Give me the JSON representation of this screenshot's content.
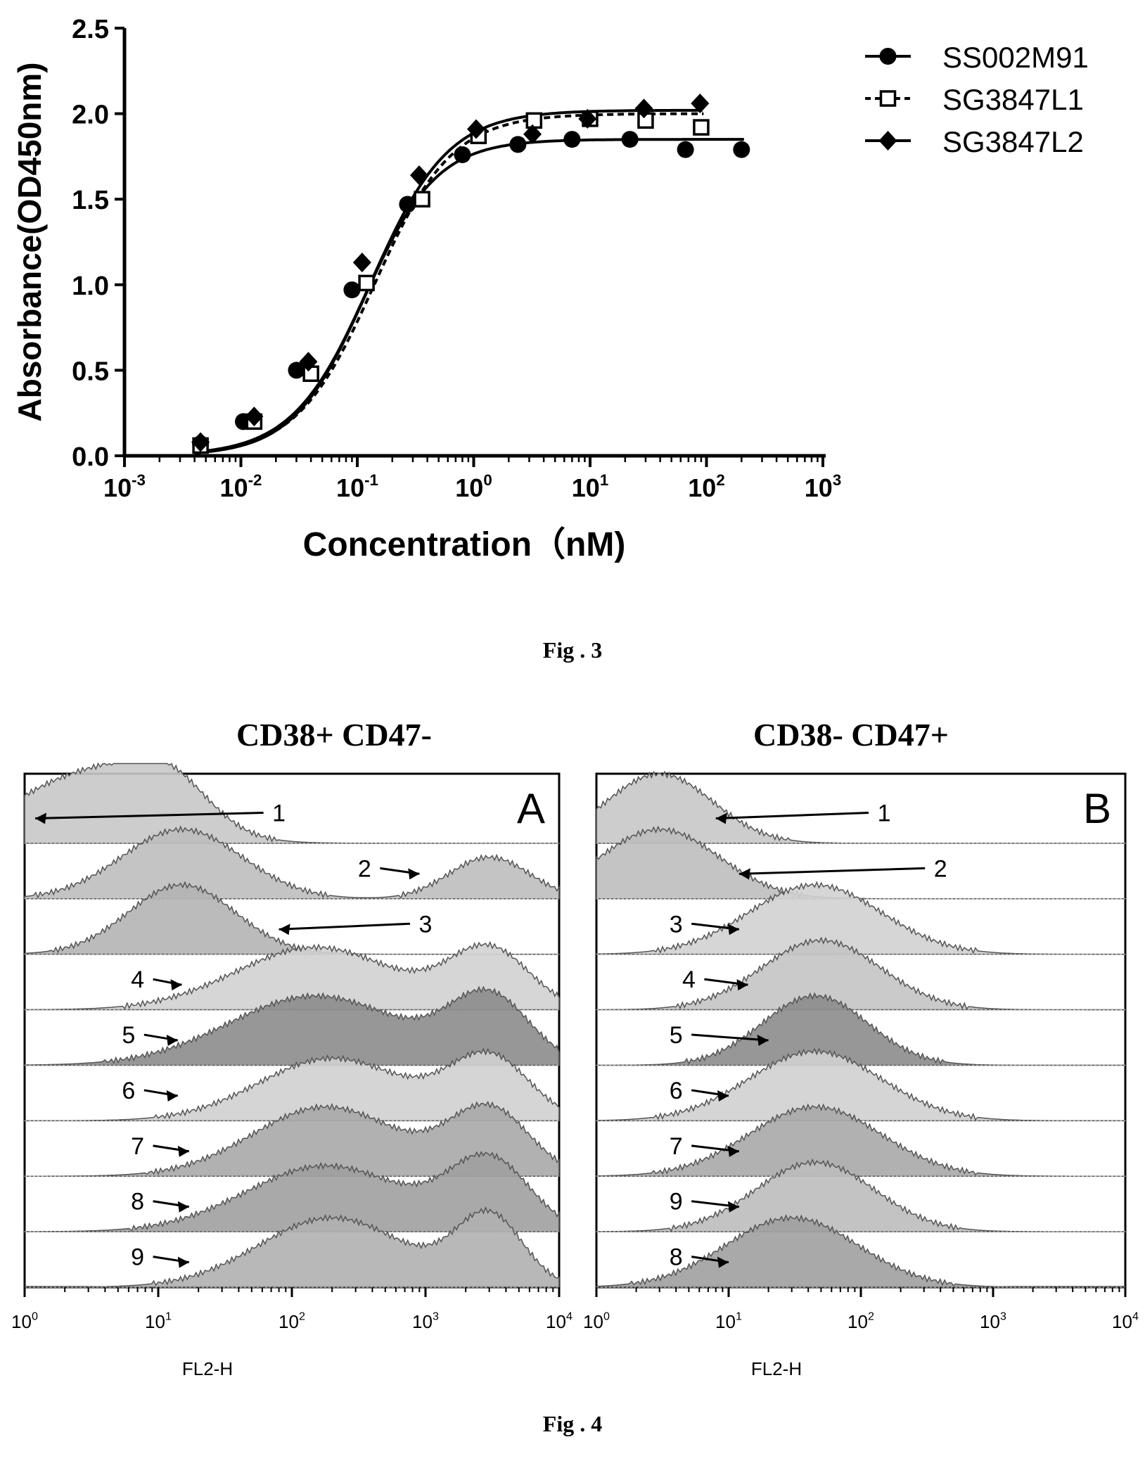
{
  "figures": {
    "fig3_caption": "Fig . 3",
    "fig4_caption": "Fig . 4"
  },
  "chart_data": [
    {
      "type": "line",
      "xscale": "log",
      "ylabel": "Absorbance(OD450nm)",
      "xlabel": "Concentration（nM)",
      "xlim": [
        0.001,
        1000
      ],
      "ylim": [
        0,
        2.5
      ],
      "yticks": [
        "0.0",
        "0.5",
        "1.0",
        "1.5",
        "2.0",
        "2.5"
      ],
      "xticks": [
        {
          "base": "10",
          "exp": "-3"
        },
        {
          "base": "10",
          "exp": "-2"
        },
        {
          "base": "10",
          "exp": "-1"
        },
        {
          "base": "10",
          "exp": "0"
        },
        {
          "base": "10",
          "exp": "1"
        },
        {
          "base": "10",
          "exp": "2"
        },
        {
          "base": "10",
          "exp": "3"
        }
      ],
      "legend_position": "top-right",
      "series": [
        {
          "name": "SS002M91",
          "marker": "circle",
          "line": "solid",
          "fit": {
            "bottom": 0.0,
            "top": 1.85,
            "ec50": 0.115,
            "hill": 1.4
          },
          "points": [
            {
              "x": 0.0045,
              "y": 0.07
            },
            {
              "x": 0.0105,
              "y": 0.2
            },
            {
              "x": 0.03,
              "y": 0.5
            },
            {
              "x": 0.09,
              "y": 0.97
            },
            {
              "x": 0.27,
              "y": 1.47
            },
            {
              "x": 0.8,
              "y": 1.76
            },
            {
              "x": 2.4,
              "y": 1.82
            },
            {
              "x": 7.0,
              "y": 1.85
            },
            {
              "x": 22.0,
              "y": 1.85
            },
            {
              "x": 66.0,
              "y": 1.79
            },
            {
              "x": 200.0,
              "y": 1.79
            }
          ]
        },
        {
          "name": "SG3847L1",
          "marker": "open-square",
          "line": "dashed",
          "fit": {
            "bottom": 0.0,
            "top": 2.0,
            "ec50": 0.14,
            "hill": 1.3
          },
          "points": [
            {
              "x": 0.0045,
              "y": 0.06
            },
            {
              "x": 0.013,
              "y": 0.2
            },
            {
              "x": 0.04,
              "y": 0.48
            },
            {
              "x": 0.12,
              "y": 1.01
            },
            {
              "x": 0.36,
              "y": 1.5
            },
            {
              "x": 1.1,
              "y": 1.87
            },
            {
              "x": 3.3,
              "y": 1.96
            },
            {
              "x": 10.0,
              "y": 1.97
            },
            {
              "x": 30.0,
              "y": 1.96
            },
            {
              "x": 90.0,
              "y": 1.92
            }
          ]
        },
        {
          "name": "SG3847L2",
          "marker": "diamond",
          "line": "solid",
          "fit": {
            "bottom": 0.0,
            "top": 2.02,
            "ec50": 0.13,
            "hill": 1.3
          },
          "points": [
            {
              "x": 0.0045,
              "y": 0.08
            },
            {
              "x": 0.013,
              "y": 0.23
            },
            {
              "x": 0.038,
              "y": 0.55
            },
            {
              "x": 0.11,
              "y": 1.13
            },
            {
              "x": 0.34,
              "y": 1.64
            },
            {
              "x": 1.05,
              "y": 1.91
            },
            {
              "x": 3.2,
              "y": 1.88
            },
            {
              "x": 9.5,
              "y": 1.97
            },
            {
              "x": 29.0,
              "y": 2.03
            },
            {
              "x": 88.0,
              "y": 2.06
            }
          ]
        }
      ]
    },
    {
      "type": "histogram-stack",
      "panel": "A",
      "title": "CD38+  CD47-",
      "xlabel": "FL2-H",
      "xscale": "log",
      "xlim": [
        1,
        10000
      ],
      "xticks": [
        {
          "base": "10",
          "exp": "0"
        },
        {
          "base": "10",
          "exp": "1"
        },
        {
          "base": "10",
          "exp": "2"
        },
        {
          "base": "10",
          "exp": "3"
        },
        {
          "base": "10",
          "exp": "4"
        }
      ],
      "traces": [
        {
          "label": "1",
          "shade": "#c8c8c8",
          "label_at": 80,
          "arrow_to": 1.2,
          "peaks": [
            {
              "center": 3,
              "width": 0.55,
              "height": 1.0
            },
            {
              "center": 12,
              "width": 0.3,
              "height": 0.6
            }
          ]
        },
        {
          "label": "2",
          "shade": "#bebebe",
          "label_at": 350,
          "arrow_to": 900,
          "peaks": [
            {
              "center": 15,
              "width": 0.45,
              "height": 1.0
            },
            {
              "center": 3000,
              "width": 0.3,
              "height": 0.6
            }
          ]
        },
        {
          "label": "3",
          "shade": "#b4b4b4",
          "label_at": 1000,
          "arrow_to": 80,
          "peaks": [
            {
              "center": 15,
              "width": 0.4,
              "height": 1.0
            }
          ]
        },
        {
          "label": "4",
          "shade": "#d2d2d2",
          "label_at": 7,
          "arrow_to": 15,
          "peaks": [
            {
              "center": 150,
              "width": 0.6,
              "height": 0.9
            },
            {
              "center": 3000,
              "width": 0.3,
              "height": 0.85
            }
          ]
        },
        {
          "label": "5",
          "shade": "#8c8c8c",
          "label_at": 6,
          "arrow_to": 14,
          "peaks": [
            {
              "center": 150,
              "width": 0.65,
              "height": 1.0
            },
            {
              "center": 3000,
              "width": 0.3,
              "height": 0.95
            }
          ]
        },
        {
          "label": "6",
          "shade": "#d0d0d0",
          "label_at": 6,
          "arrow_to": 14,
          "peaks": [
            {
              "center": 200,
              "width": 0.55,
              "height": 0.9
            },
            {
              "center": 3000,
              "width": 0.3,
              "height": 0.9
            }
          ]
        },
        {
          "label": "7",
          "shade": "#a8a8a8",
          "label_at": 7,
          "arrow_to": 17,
          "peaks": [
            {
              "center": 180,
              "width": 0.55,
              "height": 1.0
            },
            {
              "center": 3000,
              "width": 0.3,
              "height": 0.95
            }
          ]
        },
        {
          "label": "8",
          "shade": "#a0a0a0",
          "label_at": 7,
          "arrow_to": 17,
          "peaks": [
            {
              "center": 180,
              "width": 0.6,
              "height": 0.95
            },
            {
              "center": 3000,
              "width": 0.3,
              "height": 1.0
            }
          ]
        },
        {
          "label": "9",
          "shade": "#b0b0b0",
          "label_at": 7,
          "arrow_to": 17,
          "peaks": [
            {
              "center": 200,
              "width": 0.55,
              "height": 1.0
            },
            {
              "center": 3000,
              "width": 0.25,
              "height": 1.0
            }
          ]
        }
      ]
    },
    {
      "type": "histogram-stack",
      "panel": "B",
      "title": "CD38-  CD47+",
      "xlabel": "FL2-H",
      "xscale": "log",
      "xlim": [
        1,
        10000
      ],
      "xticks": [
        {
          "base": "10",
          "exp": "0"
        },
        {
          "base": "10",
          "exp": "1"
        },
        {
          "base": "10",
          "exp": "2"
        },
        {
          "base": "10",
          "exp": "3"
        },
        {
          "base": "10",
          "exp": "4"
        }
      ],
      "traces": [
        {
          "label": "1",
          "shade": "#c8c8c8",
          "label_at": 150,
          "arrow_to": 8,
          "peaks": [
            {
              "center": 3,
              "width": 0.4,
              "height": 1.0
            }
          ]
        },
        {
          "label": "2",
          "shade": "#bebebe",
          "label_at": 400,
          "arrow_to": 12,
          "peaks": [
            {
              "center": 3,
              "width": 0.45,
              "height": 1.0
            }
          ]
        },
        {
          "label": "3",
          "shade": "#d2d2d2",
          "label_at": 4,
          "arrow_to": 12,
          "peaks": [
            {
              "center": 45,
              "width": 0.5,
              "height": 1.0
            }
          ]
        },
        {
          "label": "4",
          "shade": "#c4c4c4",
          "label_at": 5,
          "arrow_to": 14,
          "peaks": [
            {
              "center": 50,
              "width": 0.45,
              "height": 1.0
            }
          ]
        },
        {
          "label": "5",
          "shade": "#8c8c8c",
          "label_at": 4,
          "arrow_to": 20,
          "peaks": [
            {
              "center": 45,
              "width": 0.4,
              "height": 1.0
            }
          ]
        },
        {
          "label": "6",
          "shade": "#d0d0d0",
          "label_at": 4,
          "arrow_to": 10,
          "peaks": [
            {
              "center": 45,
              "width": 0.5,
              "height": 1.0
            }
          ]
        },
        {
          "label": "7",
          "shade": "#a8a8a8",
          "label_at": 4,
          "arrow_to": 12,
          "peaks": [
            {
              "center": 45,
              "width": 0.5,
              "height": 1.0
            }
          ]
        },
        {
          "label": "9",
          "shade": "#bcbcbc",
          "label_at": 4,
          "arrow_to": 12,
          "peaks": [
            {
              "center": 45,
              "width": 0.45,
              "height": 1.0
            }
          ]
        },
        {
          "label": "8",
          "shade": "#a0a0a0",
          "label_at": 4,
          "arrow_to": 10,
          "peaks": [
            {
              "center": 30,
              "width": 0.5,
              "height": 1.0
            }
          ]
        }
      ]
    }
  ]
}
